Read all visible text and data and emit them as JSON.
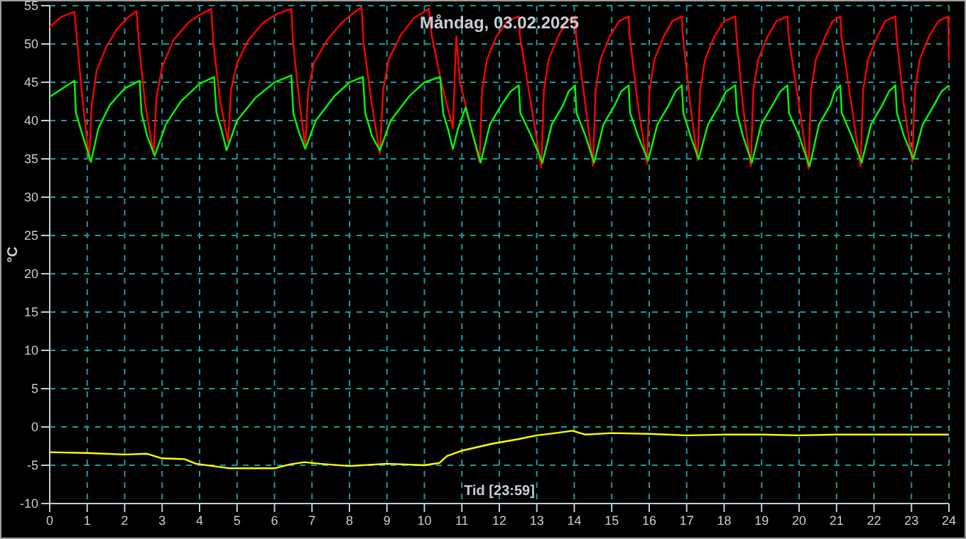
{
  "chart_data": {
    "type": "line",
    "title": "Måndag, 03.02.2025",
    "xlabel": "Tid [23:59]",
    "ylabel": "°C",
    "xlim": [
      0,
      24
    ],
    "xticks": [
      0,
      1,
      2,
      3,
      4,
      5,
      6,
      7,
      8,
      9,
      10,
      11,
      12,
      13,
      14,
      15,
      16,
      17,
      18,
      19,
      20,
      21,
      22,
      23,
      24
    ],
    "ylim": [
      -10,
      55
    ],
    "yticks": [
      -10,
      -5,
      0,
      5,
      10,
      15,
      20,
      25,
      30,
      35,
      40,
      45,
      50,
      55
    ],
    "grid": true,
    "marker": "none",
    "line_style": "solid",
    "series": [
      {
        "color": "#ff0000",
        "x": [
          0,
          0.3,
          0.66,
          0.72,
          0.85,
          1.05,
          1.12,
          1.25,
          1.5,
          1.8,
          2.1,
          2.32,
          2.38,
          2.55,
          2.77,
          2.85,
          3.0,
          3.3,
          3.7,
          4.0,
          4.31,
          4.37,
          4.55,
          4.76,
          4.84,
          5.0,
          5.3,
          5.7,
          6.1,
          6.45,
          6.5,
          6.65,
          6.82,
          6.9,
          7.05,
          7.4,
          7.8,
          8.1,
          8.32,
          8.38,
          8.6,
          8.81,
          8.9,
          9.05,
          9.35,
          9.7,
          10.12,
          10.2,
          10.45,
          10.76,
          10.85,
          10.95,
          11.2,
          11.47,
          11.54,
          11.67,
          11.92,
          12.22,
          12.52,
          12.55,
          12.85,
          13.12,
          13.19,
          13.32,
          13.57,
          13.8,
          14.02,
          14.05,
          14.3,
          14.5,
          14.57,
          14.7,
          14.95,
          15.2,
          15.45,
          15.48,
          15.7,
          15.94,
          16.01,
          16.14,
          16.39,
          16.62,
          16.87,
          16.9,
          17.1,
          17.29,
          17.36,
          17.49,
          17.74,
          18.0,
          18.3,
          18.33,
          18.5,
          18.71,
          18.78,
          18.91,
          19.16,
          19.4,
          19.69,
          19.72,
          20.0,
          20.25,
          20.32,
          20.45,
          20.7,
          20.9,
          21.1,
          21.13,
          21.4,
          21.64,
          21.71,
          21.84,
          22.09,
          22.3,
          22.57,
          22.6,
          22.8,
          23.02,
          23.09,
          23.22,
          23.47,
          23.72,
          23.98,
          24
        ],
        "values": [
          52.2,
          53.5,
          54.2,
          51,
          44,
          34.8,
          42,
          46.5,
          49.5,
          52,
          53.5,
          54.3,
          50,
          42,
          35.6,
          43,
          47,
          50.5,
          52.8,
          53.8,
          54.6,
          50,
          42.5,
          37.2,
          44,
          47.5,
          50.5,
          52.8,
          54,
          54.6,
          50,
          43,
          36.5,
          44,
          47.5,
          50.5,
          52.8,
          54,
          54.8,
          50,
          42,
          35.7,
          44,
          48,
          51,
          53.3,
          54.6,
          51,
          45,
          39,
          51,
          45,
          40,
          34.6,
          44,
          48,
          51,
          53,
          53.6,
          51,
          42,
          33.9,
          44,
          48,
          51,
          53,
          53.6,
          51,
          42,
          34.1,
          44,
          48,
          51,
          53,
          53.6,
          51,
          42,
          34.4,
          44,
          48,
          51,
          53,
          53.6,
          51,
          42,
          34.8,
          44,
          48,
          51,
          53,
          53.6,
          51,
          42,
          34,
          44,
          48,
          51,
          53,
          53.6,
          51,
          42,
          33.7,
          44,
          48,
          51,
          53,
          53.6,
          51,
          42,
          34,
          44,
          48,
          51,
          53,
          53.6,
          51,
          42,
          34.6,
          44,
          48,
          51,
          53,
          53.6,
          47.8
        ]
      },
      {
        "color": "#00ff00",
        "x": [
          0,
          0.66,
          0.7,
          0.85,
          1.1,
          1.3,
          1.6,
          2.0,
          2.4,
          2.45,
          2.6,
          2.8,
          3.1,
          3.5,
          4.0,
          4.39,
          4.45,
          4.6,
          4.72,
          5.0,
          5.5,
          6.0,
          6.45,
          6.5,
          6.65,
          6.82,
          7.1,
          7.6,
          8.0,
          8.36,
          8.42,
          8.6,
          8.81,
          9.1,
          9.6,
          10.0,
          10.42,
          10.5,
          10.65,
          10.76,
          10.9,
          11.1,
          11.3,
          11.5,
          11.75,
          12.05,
          12.3,
          12.52,
          12.56,
          12.85,
          13.15,
          13.4,
          13.7,
          13.85,
          14.02,
          14.06,
          14.3,
          14.53,
          14.78,
          15.08,
          15.25,
          15.45,
          15.49,
          15.7,
          15.97,
          16.22,
          16.52,
          16.7,
          16.87,
          16.91,
          17.1,
          17.32,
          17.57,
          17.87,
          18.05,
          18.3,
          18.34,
          18.5,
          18.74,
          18.99,
          19.29,
          19.5,
          19.69,
          19.73,
          20.0,
          20.28,
          20.53,
          20.83,
          20.95,
          21.1,
          21.14,
          21.4,
          21.67,
          21.92,
          22.22,
          22.4,
          22.57,
          22.61,
          22.8,
          23.05,
          23.3,
          23.6,
          23.8,
          24
        ],
        "values": [
          43.1,
          45.2,
          41,
          38.5,
          34.6,
          39,
          42,
          44.2,
          45.2,
          41,
          38,
          35.4,
          39.5,
          42.5,
          44.8,
          45.7,
          41,
          38.5,
          36.1,
          40,
          43,
          45,
          45.9,
          41,
          38.5,
          36.3,
          40,
          43.2,
          45,
          45.7,
          41,
          38,
          36.1,
          40,
          43.2,
          45,
          45.7,
          41,
          38.5,
          36.3,
          39,
          41.7,
          38,
          34.5,
          39.5,
          42,
          43.8,
          44.6,
          41,
          38,
          34.5,
          39.5,
          42,
          43.8,
          44.6,
          41,
          38,
          34.5,
          39.5,
          42,
          43.8,
          44.6,
          41,
          38,
          34.8,
          39.5,
          42,
          43.8,
          44.6,
          41,
          38,
          35,
          39.5,
          42,
          43.8,
          44.6,
          41,
          38,
          34.5,
          39.5,
          42,
          43.8,
          44.6,
          41,
          38,
          34,
          39.5,
          42,
          43.8,
          44.6,
          41,
          38,
          34.5,
          39.5,
          42,
          43.8,
          44.6,
          41,
          38,
          35,
          39.5,
          42,
          43.8,
          44.6
        ]
      },
      {
        "color": "#ffff00",
        "x": [
          0,
          1,
          2,
          2.6,
          3,
          3.6,
          3.9,
          4.8,
          6,
          6.4,
          6.8,
          7.2,
          8,
          9,
          10,
          10.4,
          10.6,
          11,
          11.8,
          12.5,
          13,
          13.5,
          13.95,
          14.3,
          15,
          16,
          17,
          18,
          19,
          20,
          21,
          22,
          23,
          24
        ],
        "values": [
          -3.3,
          -3.4,
          -3.6,
          -3.5,
          -4.1,
          -4.2,
          -4.8,
          -5.4,
          -5.4,
          -4.9,
          -4.6,
          -4.8,
          -5.1,
          -4.8,
          -5.0,
          -4.7,
          -3.8,
          -3.1,
          -2.2,
          -1.6,
          -1.1,
          -0.8,
          -0.5,
          -1.0,
          -0.8,
          -0.9,
          -1.1,
          -1.0,
          -1.0,
          -1.1,
          -1.0,
          -1.0,
          -1.0,
          -1.0
        ]
      }
    ]
  }
}
